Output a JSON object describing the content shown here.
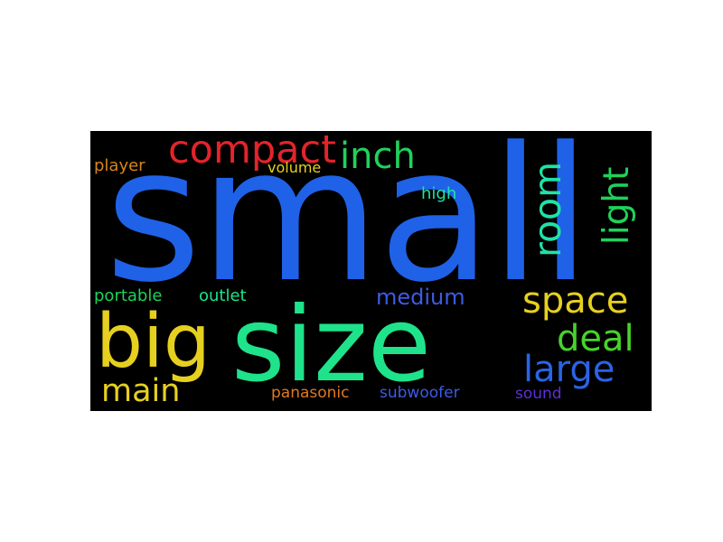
{
  "words": [
    {
      "text": "small",
      "color": "#1f62e8"
    },
    {
      "text": "size",
      "color": "#1ee38a"
    },
    {
      "text": "big",
      "color": "#e6d01f"
    },
    {
      "text": "compact",
      "color": "#e3242b"
    },
    {
      "text": "inch",
      "color": "#1fd25a"
    },
    {
      "text": "room",
      "color": "#1ee3a6"
    },
    {
      "text": "light",
      "color": "#1fd25a"
    },
    {
      "text": "space",
      "color": "#e6d01f"
    },
    {
      "text": "deal",
      "color": "#46d32a"
    },
    {
      "text": "large",
      "color": "#2a63e6"
    },
    {
      "text": "main",
      "color": "#e6d01f"
    },
    {
      "text": "medium",
      "color": "#3c5be4"
    },
    {
      "text": "player",
      "color": "#d6851d"
    },
    {
      "text": "volume",
      "color": "#e6d01f"
    },
    {
      "text": "high",
      "color": "#1ee3a6"
    },
    {
      "text": "portable",
      "color": "#1fd25a"
    },
    {
      "text": "outlet",
      "color": "#1ee38a"
    },
    {
      "text": "panasonic",
      "color": "#e07a1e"
    },
    {
      "text": "subwoofer",
      "color": "#3c5be4"
    },
    {
      "text": "sound",
      "color": "#5d2fd8"
    }
  ]
}
